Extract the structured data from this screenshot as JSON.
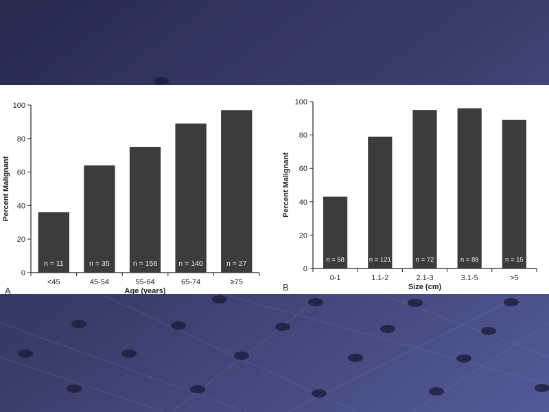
{
  "chart_data": [
    {
      "type": "bar",
      "panel_label": "A",
      "categories": [
        "<45",
        "45-54",
        "55-64",
        "65-74",
        "≥75"
      ],
      "values": [
        36,
        64,
        75,
        89,
        97
      ],
      "bar_labels": [
        "n = 11",
        "n = 35",
        "n = 156",
        "n = 140",
        "n = 27"
      ],
      "xlabel": "Age (years)",
      "ylabel": "Percent Malignant",
      "ylim": [
        0,
        100
      ],
      "yticks": [
        0,
        20,
        40,
        60,
        80,
        100
      ],
      "grid": false
    },
    {
      "type": "bar",
      "panel_label": "B",
      "categories": [
        "0-1",
        "1.1-2",
        "2.1-3",
        "3.1-5",
        ">5"
      ],
      "values": [
        43,
        79,
        95,
        96,
        89
      ],
      "bar_labels": [
        "n = 58",
        "n = 121",
        "n = 72",
        "n = 88",
        "n = 15"
      ],
      "xlabel": "Size (cm)",
      "ylabel": "Percent Malignant",
      "ylim": [
        0,
        100
      ],
      "yticks": [
        0,
        20,
        40,
        60,
        80,
        100
      ],
      "grid": false
    }
  ],
  "colors": {
    "bar_fill": "#3c3c3c",
    "axis": "#222222",
    "background_top": "#2a2d52",
    "background_bottom": "#4f5390",
    "panel": "#ffffff",
    "dot": "#1e2040"
  }
}
